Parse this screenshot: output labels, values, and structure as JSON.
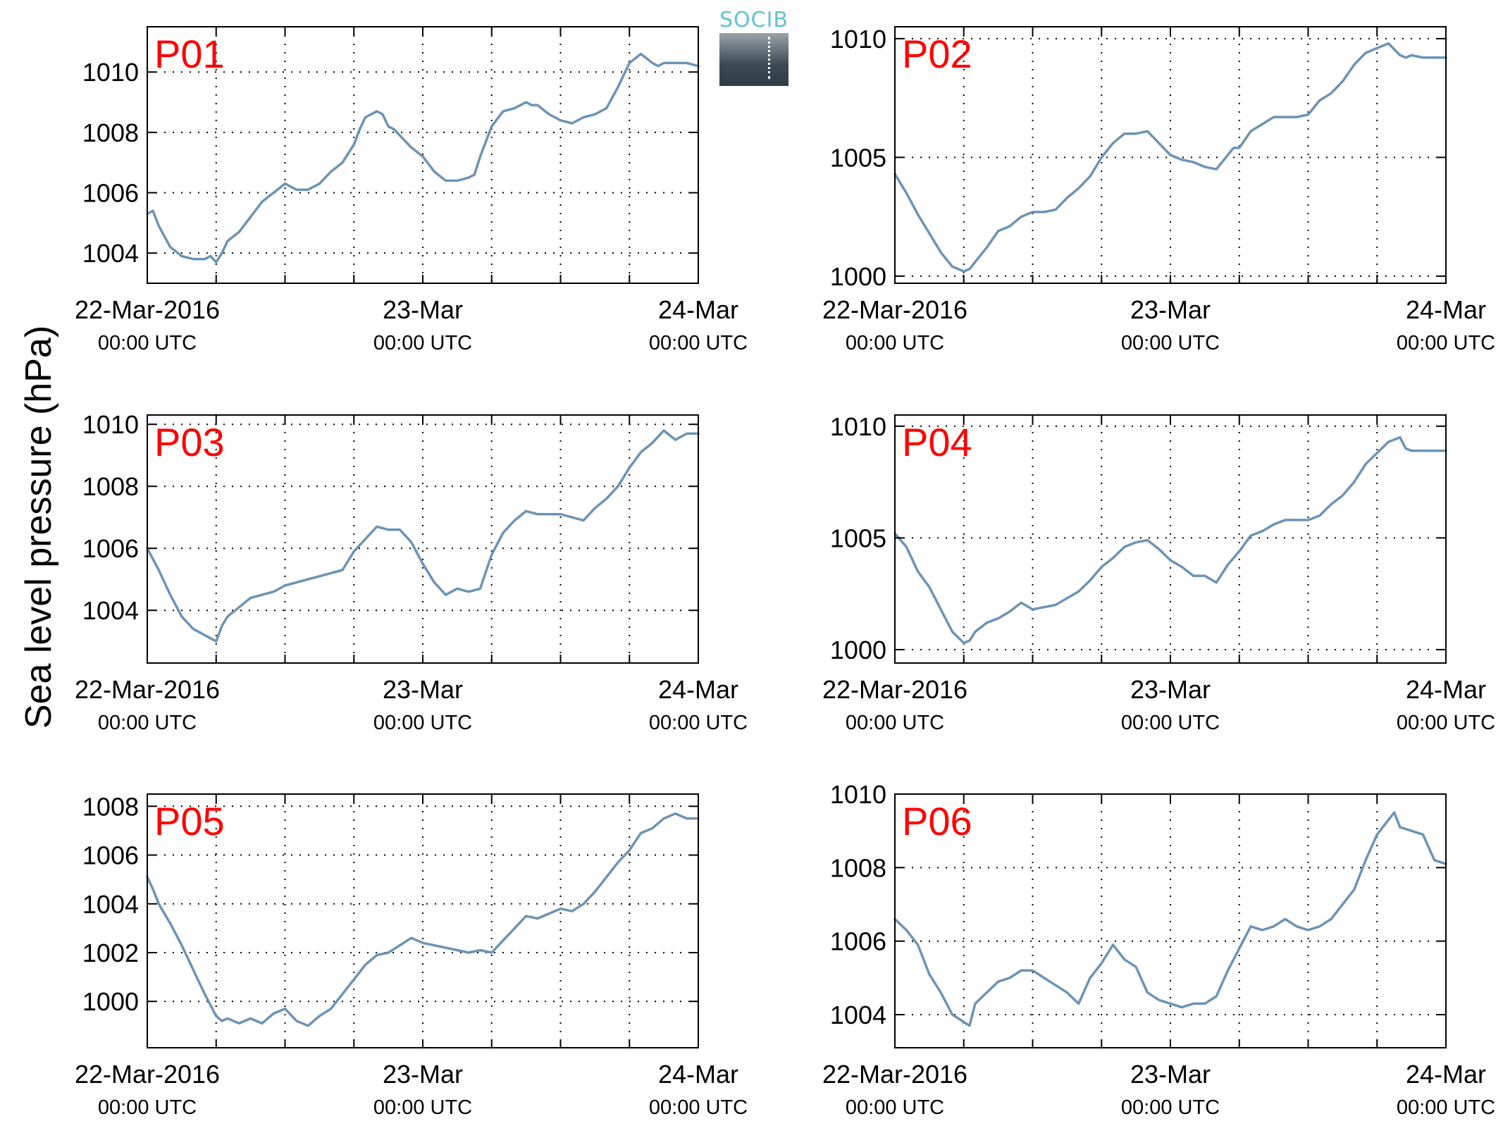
{
  "figure": {
    "ylabel": "Sea level pressure (hPa)",
    "logo_text": "SOCIB"
  },
  "colors": {
    "line": "#6d93b5",
    "panel_label": "#ff0000",
    "axis": "#000000",
    "grid": "#000000"
  },
  "chart_data": [
    {
      "type": "line",
      "panel_label": "P01",
      "ylim": [
        1003,
        1011.5
      ],
      "yticks": [
        1004,
        1006,
        1008,
        1010
      ],
      "xlim": [
        0,
        48
      ],
      "xticks": [
        {
          "x": 0,
          "line1": "22-Mar-2016",
          "line2": "00:00 UTC"
        },
        {
          "x": 24,
          "line1": "23-Mar",
          "line2": "00:00 UTC"
        },
        {
          "x": 48,
          "line1": "24-Mar",
          "line2": "00:00 UTC"
        }
      ],
      "x_gridlines": [
        6,
        12,
        18,
        24,
        30,
        36,
        42
      ],
      "grid": true,
      "x": [
        0,
        0.5,
        1,
        2,
        3,
        4,
        5,
        5.5,
        6,
        6.5,
        7,
        8,
        9,
        10,
        11,
        12,
        13,
        14,
        15,
        16,
        17,
        17.5,
        18,
        18.5,
        19,
        20,
        20.5,
        21,
        21.5,
        22,
        23,
        24,
        25,
        26,
        27,
        28,
        28.5,
        29,
        30,
        31,
        32,
        33,
        33.5,
        34,
        35,
        36,
        37,
        38,
        39,
        40,
        41,
        41.5,
        42,
        43,
        44,
        44.5,
        45,
        46,
        47,
        48
      ],
      "y": [
        1005.3,
        1005.4,
        1004.9,
        1004.2,
        1003.9,
        1003.8,
        1003.8,
        1003.9,
        1003.7,
        1004,
        1004.4,
        1004.7,
        1005.2,
        1005.7,
        1006,
        1006.3,
        1006.1,
        1006.1,
        1006.3,
        1006.7,
        1007,
        1007.3,
        1007.6,
        1008.1,
        1008.5,
        1008.7,
        1008.6,
        1008.2,
        1008.1,
        1007.9,
        1007.5,
        1007.2,
        1006.7,
        1006.4,
        1006.4,
        1006.5,
        1006.6,
        1007.2,
        1008.2,
        1008.7,
        1008.8,
        1009,
        1008.9,
        1008.9,
        1008.6,
        1008.4,
        1008.3,
        1008.5,
        1008.6,
        1008.8,
        1009.5,
        1009.9,
        1010.3,
        1010.6,
        1010.3,
        1010.2,
        1010.3,
        1010.3,
        1010.3,
        1010.2
      ]
    },
    {
      "type": "line",
      "panel_label": "P02",
      "ylim": [
        999.7,
        1010.5
      ],
      "yticks": [
        1000,
        1005,
        1010
      ],
      "xlim": [
        0,
        48
      ],
      "xticks": [
        {
          "x": 0,
          "line1": "22-Mar-2016",
          "line2": "00:00 UTC"
        },
        {
          "x": 24,
          "line1": "23-Mar",
          "line2": "00:00 UTC"
        },
        {
          "x": 48,
          "line1": "24-Mar",
          "line2": "00:00 UTC"
        }
      ],
      "x_gridlines": [
        6,
        12,
        18,
        24,
        30,
        36,
        42
      ],
      "grid": true,
      "x": [
        0,
        1,
        2,
        3,
        4,
        5,
        6,
        6.5,
        7,
        8,
        9,
        10,
        11,
        12,
        13,
        14,
        15,
        16,
        17,
        18,
        19,
        20,
        21,
        22,
        23,
        24,
        25,
        26,
        27,
        28,
        29,
        29.5,
        30,
        31,
        32,
        33,
        34,
        35,
        36,
        37,
        38,
        39,
        40,
        41,
        42,
        43,
        44,
        44.5,
        45,
        46,
        47,
        48
      ],
      "y": [
        1004.3,
        1003.5,
        1002.6,
        1001.8,
        1001,
        1000.4,
        1000.2,
        1000.3,
        1000.6,
        1001.2,
        1001.9,
        1002.1,
        1002.5,
        1002.7,
        1002.7,
        1002.8,
        1003.3,
        1003.7,
        1004.2,
        1005,
        1005.6,
        1006,
        1006,
        1006.1,
        1005.6,
        1005.1,
        1004.9,
        1004.8,
        1004.6,
        1004.5,
        1005.1,
        1005.4,
        1005.4,
        1006.1,
        1006.4,
        1006.7,
        1006.7,
        1006.7,
        1006.8,
        1007.4,
        1007.7,
        1008.2,
        1008.9,
        1009.4,
        1009.6,
        1009.8,
        1009.3,
        1009.2,
        1009.3,
        1009.2,
        1009.2,
        1009.2
      ]
    },
    {
      "type": "line",
      "panel_label": "P03",
      "ylim": [
        1002.3,
        1010.3
      ],
      "yticks": [
        1004,
        1006,
        1008,
        1010
      ],
      "xlim": [
        0,
        48
      ],
      "xticks": [
        {
          "x": 0,
          "line1": "22-Mar-2016",
          "line2": "00:00 UTC"
        },
        {
          "x": 24,
          "line1": "23-Mar",
          "line2": "00:00 UTC"
        },
        {
          "x": 48,
          "line1": "24-Mar",
          "line2": "00:00 UTC"
        }
      ],
      "x_gridlines": [
        6,
        12,
        18,
        24,
        30,
        36,
        42
      ],
      "grid": true,
      "x": [
        0,
        1,
        2,
        3,
        4,
        5,
        6,
        6.5,
        7,
        8,
        9,
        10,
        11,
        12,
        13,
        14,
        15,
        16,
        17,
        18,
        19,
        20,
        21,
        22,
        23,
        24,
        25,
        26,
        27,
        28,
        29,
        30,
        31,
        32,
        33,
        34,
        35,
        36,
        37,
        38,
        39,
        40,
        41,
        42,
        43,
        44,
        45,
        46,
        47,
        48
      ],
      "y": [
        1006,
        1005.3,
        1004.5,
        1003.8,
        1003.4,
        1003.2,
        1003,
        1003.5,
        1003.8,
        1004.1,
        1004.4,
        1004.5,
        1004.6,
        1004.8,
        1004.9,
        1005,
        1005.1,
        1005.2,
        1005.3,
        1005.9,
        1006.3,
        1006.7,
        1006.6,
        1006.6,
        1006.2,
        1005.5,
        1004.9,
        1004.5,
        1004.7,
        1004.6,
        1004.7,
        1005.8,
        1006.5,
        1006.9,
        1007.2,
        1007.1,
        1007.1,
        1007.1,
        1007,
        1006.9,
        1007.3,
        1007.6,
        1008,
        1008.6,
        1009.1,
        1009.4,
        1009.8,
        1009.5,
        1009.7,
        1009.7
      ]
    },
    {
      "type": "line",
      "panel_label": "P04",
      "ylim": [
        999.4,
        1010.5
      ],
      "yticks": [
        1000,
        1005,
        1010
      ],
      "xlim": [
        0,
        48
      ],
      "xticks": [
        {
          "x": 0,
          "line1": "22-Mar-2016",
          "line2": "00:00 UTC"
        },
        {
          "x": 24,
          "line1": "23-Mar",
          "line2": "00:00 UTC"
        },
        {
          "x": 48,
          "line1": "24-Mar",
          "line2": "00:00 UTC"
        }
      ],
      "x_gridlines": [
        6,
        12,
        18,
        24,
        30,
        36,
        42
      ],
      "grid": true,
      "x": [
        0,
        1,
        2,
        3,
        4,
        5,
        6,
        6.5,
        7,
        8,
        9,
        10,
        11,
        12,
        13,
        14,
        15,
        16,
        17,
        18,
        19,
        20,
        21,
        22,
        23,
        24,
        25,
        26,
        27,
        28,
        29,
        30,
        31,
        32,
        33,
        34,
        35,
        36,
        37,
        38,
        39,
        40,
        41,
        42,
        43,
        44,
        44.5,
        45,
        46,
        47,
        48
      ],
      "y": [
        1005.2,
        1004.6,
        1003.5,
        1002.8,
        1001.8,
        1000.8,
        1000.3,
        1000.4,
        1000.8,
        1001.2,
        1001.4,
        1001.7,
        1002.1,
        1001.8,
        1001.9,
        1002,
        1002.3,
        1002.6,
        1003.1,
        1003.7,
        1004.1,
        1004.6,
        1004.8,
        1004.9,
        1004.5,
        1004,
        1003.7,
        1003.3,
        1003.3,
        1003,
        1003.8,
        1004.4,
        1005.1,
        1005.3,
        1005.6,
        1005.8,
        1005.8,
        1005.8,
        1006,
        1006.5,
        1006.9,
        1007.5,
        1008.3,
        1008.8,
        1009.3,
        1009.5,
        1009,
        1008.9,
        1008.9,
        1008.9,
        1008.9
      ]
    },
    {
      "type": "line",
      "panel_label": "P05",
      "ylim": [
        998.1,
        1008.5
      ],
      "yticks": [
        1000,
        1002,
        1004,
        1006,
        1008
      ],
      "xlim": [
        0,
        48
      ],
      "xticks": [
        {
          "x": 0,
          "line1": "22-Mar-2016",
          "line2": "00:00 UTC"
        },
        {
          "x": 24,
          "line1": "23-Mar",
          "line2": "00:00 UTC"
        },
        {
          "x": 48,
          "line1": "24-Mar",
          "line2": "00:00 UTC"
        }
      ],
      "x_gridlines": [
        6,
        12,
        18,
        24,
        30,
        36,
        42
      ],
      "grid": true,
      "x": [
        0,
        0.5,
        1,
        2,
        3,
        4,
        5,
        6,
        6.5,
        7,
        8,
        9,
        10,
        11,
        12,
        13,
        14,
        15,
        16,
        17,
        18,
        19,
        20,
        21,
        22,
        23,
        24,
        25,
        26,
        27,
        28,
        29,
        30,
        31,
        32,
        33,
        34,
        35,
        36,
        37,
        38,
        39,
        40,
        41,
        42,
        43,
        44,
        45,
        46,
        47,
        48
      ],
      "y": [
        1005.1,
        1004.6,
        1004,
        1003.2,
        1002.3,
        1001.3,
        1000.3,
        999.4,
        999.2,
        999.3,
        999.1,
        999.3,
        999.1,
        999.5,
        999.7,
        999.2,
        999,
        999.4,
        999.7,
        1000.3,
        1000.9,
        1001.5,
        1001.9,
        1002,
        1002.3,
        1002.6,
        1002.4,
        1002.3,
        1002.2,
        1002.1,
        1002,
        1002.1,
        1002,
        1002.5,
        1003,
        1003.5,
        1003.4,
        1003.6,
        1003.8,
        1003.7,
        1004,
        1004.5,
        1005.1,
        1005.7,
        1006.2,
        1006.9,
        1007.1,
        1007.5,
        1007.7,
        1007.5,
        1007.5
      ]
    },
    {
      "type": "line",
      "panel_label": "P06",
      "ylim": [
        1003.1,
        1010
      ],
      "yticks": [
        1004,
        1006,
        1008,
        1010
      ],
      "xlim": [
        0,
        48
      ],
      "xticks": [
        {
          "x": 0,
          "line1": "22-Mar-2016",
          "line2": "00:00 UTC"
        },
        {
          "x": 24,
          "line1": "23-Mar",
          "line2": "00:00 UTC"
        },
        {
          "x": 48,
          "line1": "24-Mar",
          "line2": "00:00 UTC"
        }
      ],
      "x_gridlines": [
        6,
        12,
        18,
        24,
        30,
        36,
        42
      ],
      "grid": true,
      "x": [
        0,
        1,
        2,
        3,
        4,
        5,
        6,
        6.5,
        7,
        8,
        9,
        10,
        11,
        12,
        13,
        14,
        15,
        16,
        17,
        18,
        19,
        20,
        21,
        22,
        23,
        24,
        25,
        26,
        27,
        28,
        29,
        30,
        31,
        32,
        33,
        34,
        35,
        36,
        37,
        38,
        39,
        40,
        41,
        42,
        43,
        43.5,
        44,
        45,
        46,
        47,
        48
      ],
      "y": [
        1006.6,
        1006.3,
        1005.9,
        1005.1,
        1004.6,
        1004,
        1003.8,
        1003.7,
        1004.3,
        1004.6,
        1004.9,
        1005,
        1005.2,
        1005.2,
        1005,
        1004.8,
        1004.6,
        1004.3,
        1005,
        1005.4,
        1005.9,
        1005.5,
        1005.3,
        1004.6,
        1004.4,
        1004.3,
        1004.2,
        1004.3,
        1004.3,
        1004.5,
        1005.2,
        1005.8,
        1006.4,
        1006.3,
        1006.4,
        1006.6,
        1006.4,
        1006.3,
        1006.4,
        1006.6,
        1007,
        1007.4,
        1008.2,
        1008.9,
        1009.3,
        1009.5,
        1009.1,
        1009,
        1008.9,
        1008.2,
        1008.1
      ]
    }
  ]
}
